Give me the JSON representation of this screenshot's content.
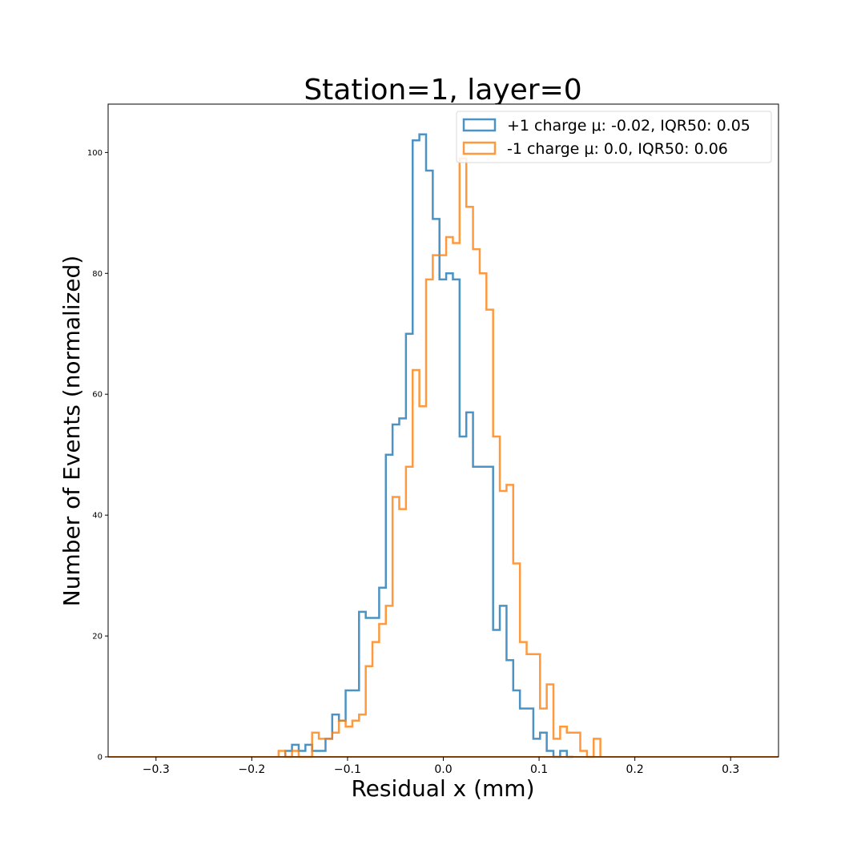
{
  "chart_data": {
    "type": "histogram-step",
    "title": "Station=1, layer=0",
    "xlabel": "Residual x (mm)",
    "ylabel": "Number of Events (normalized)",
    "xlim": [
      -0.35,
      0.35
    ],
    "ylim": [
      0,
      108
    ],
    "xticks": [
      -0.3,
      -0.2,
      -0.1,
      0.0,
      0.1,
      0.2,
      0.3
    ],
    "xtick_labels": [
      "−0.3",
      "−0.2",
      "−0.1",
      "0.0",
      "0.1",
      "0.2",
      "0.3"
    ],
    "yticks": [
      0,
      20,
      40,
      60,
      80,
      100
    ],
    "ytick_labels": [
      "0",
      "20",
      "40",
      "60",
      "80",
      "100"
    ],
    "legend_position": "top-right",
    "series": [
      {
        "name": "+1 charge μ: -0.02, IQR50: 0.05",
        "color": "#1f77b4",
        "bins": [
          [
            -0.165,
            -0.158,
            1
          ],
          [
            -0.158,
            -0.151,
            2
          ],
          [
            -0.151,
            -0.144,
            1
          ],
          [
            -0.144,
            -0.137,
            2
          ],
          [
            -0.137,
            -0.13,
            1
          ],
          [
            -0.13,
            -0.123,
            1
          ],
          [
            -0.123,
            -0.116,
            3
          ],
          [
            -0.116,
            -0.109,
            7
          ],
          [
            -0.109,
            -0.102,
            6
          ],
          [
            -0.102,
            -0.095,
            11
          ],
          [
            -0.095,
            -0.088,
            11
          ],
          [
            -0.088,
            -0.081,
            24
          ],
          [
            -0.081,
            -0.074,
            23
          ],
          [
            -0.074,
            -0.067,
            23
          ],
          [
            -0.067,
            -0.06,
            28
          ],
          [
            -0.06,
            -0.053,
            50
          ],
          [
            -0.053,
            -0.046,
            55
          ],
          [
            -0.046,
            -0.039,
            56
          ],
          [
            -0.039,
            -0.032,
            70
          ],
          [
            -0.032,
            -0.025,
            102
          ],
          [
            -0.025,
            -0.018,
            103
          ],
          [
            -0.018,
            -0.011,
            97
          ],
          [
            -0.011,
            -0.004,
            89
          ],
          [
            -0.004,
            0.003,
            79
          ],
          [
            0.003,
            0.01,
            80
          ],
          [
            0.01,
            0.017,
            79
          ],
          [
            0.017,
            0.024,
            53
          ],
          [
            0.024,
            0.031,
            57
          ],
          [
            0.031,
            0.038,
            48
          ],
          [
            0.038,
            0.045,
            48
          ],
          [
            0.045,
            0.052,
            48
          ],
          [
            0.052,
            0.059,
            21
          ],
          [
            0.059,
            0.066,
            25
          ],
          [
            0.066,
            0.073,
            16
          ],
          [
            0.073,
            0.08,
            11
          ],
          [
            0.08,
            0.087,
            8
          ],
          [
            0.087,
            0.094,
            8
          ],
          [
            0.094,
            0.101,
            3
          ],
          [
            0.101,
            0.108,
            4
          ],
          [
            0.108,
            0.115,
            1
          ],
          [
            0.115,
            0.122,
            0
          ],
          [
            0.122,
            0.129,
            1
          ],
          [
            0.129,
            0.136,
            0
          ]
        ]
      },
      {
        "name": "-1 charge μ: 0.0, IQR50: 0.06",
        "color": "#ff7f0e",
        "bins": [
          [
            -0.172,
            -0.165,
            1
          ],
          [
            -0.165,
            -0.158,
            0
          ],
          [
            -0.158,
            -0.151,
            1
          ],
          [
            -0.151,
            -0.144,
            0
          ],
          [
            -0.144,
            -0.137,
            0
          ],
          [
            -0.137,
            -0.13,
            4
          ],
          [
            -0.13,
            -0.123,
            3
          ],
          [
            -0.123,
            -0.116,
            3
          ],
          [
            -0.116,
            -0.109,
            4
          ],
          [
            -0.109,
            -0.102,
            6
          ],
          [
            -0.102,
            -0.095,
            5
          ],
          [
            -0.095,
            -0.088,
            6
          ],
          [
            -0.088,
            -0.081,
            7
          ],
          [
            -0.081,
            -0.074,
            15
          ],
          [
            -0.074,
            -0.067,
            19
          ],
          [
            -0.067,
            -0.06,
            22
          ],
          [
            -0.06,
            -0.053,
            25
          ],
          [
            -0.053,
            -0.046,
            43
          ],
          [
            -0.046,
            -0.039,
            41
          ],
          [
            -0.039,
            -0.032,
            48
          ],
          [
            -0.032,
            -0.025,
            64
          ],
          [
            -0.025,
            -0.018,
            58
          ],
          [
            -0.018,
            -0.011,
            79
          ],
          [
            -0.011,
            -0.004,
            83
          ],
          [
            -0.004,
            0.003,
            83
          ],
          [
            0.003,
            0.01,
            86
          ],
          [
            0.01,
            0.017,
            85
          ],
          [
            0.017,
            0.024,
            99
          ],
          [
            0.024,
            0.031,
            91
          ],
          [
            0.031,
            0.038,
            84
          ],
          [
            0.038,
            0.045,
            80
          ],
          [
            0.045,
            0.052,
            74
          ],
          [
            0.052,
            0.059,
            53
          ],
          [
            0.059,
            0.066,
            44
          ],
          [
            0.066,
            0.073,
            45
          ],
          [
            0.073,
            0.08,
            32
          ],
          [
            0.08,
            0.087,
            19
          ],
          [
            0.087,
            0.094,
            17
          ],
          [
            0.094,
            0.101,
            17
          ],
          [
            0.101,
            0.108,
            8
          ],
          [
            0.108,
            0.115,
            12
          ],
          [
            0.115,
            0.122,
            3
          ],
          [
            0.122,
            0.129,
            5
          ],
          [
            0.129,
            0.136,
            4
          ],
          [
            0.136,
            0.143,
            4
          ],
          [
            0.143,
            0.15,
            1
          ],
          [
            0.15,
            0.157,
            0
          ],
          [
            0.157,
            0.164,
            3
          ]
        ]
      }
    ]
  }
}
